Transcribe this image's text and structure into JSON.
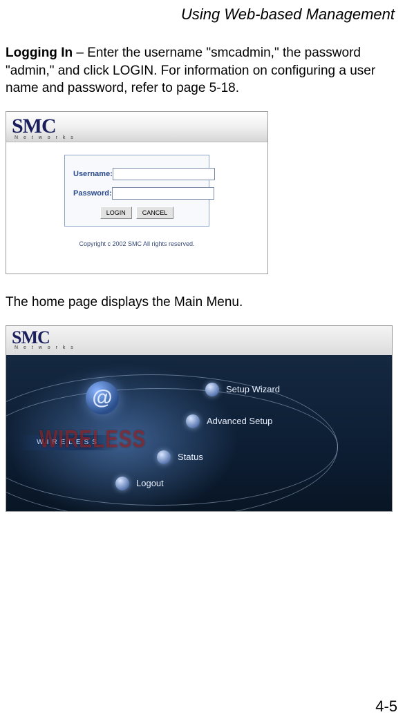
{
  "header": {
    "title": "Using Web-based Management"
  },
  "text": {
    "intro_bold": "Logging In",
    "intro_rest": " – Enter the username \"smcadmin,\" the password \"admin,\" and click LOGIN. For information on configuring a user name and password, refer to page 5-18.",
    "after_login": "The home page displays the Main Menu."
  },
  "login": {
    "logo_main": "SMC",
    "logo_sub": "N e t w o r k s",
    "username_label": "Username:",
    "password_label": "Password:",
    "username_value": "",
    "password_value": "",
    "login_btn": "LOGIN",
    "cancel_btn": "CANCEL",
    "copyright": "Copyright c 2002 SMC All rights reserved."
  },
  "menu": {
    "logo_main": "SMC",
    "logo_sub": "N e t w o r k s",
    "at": "@",
    "strip": "WIRELESS",
    "big": "WIRELESS",
    "items": [
      {
        "label": "Setup Wizard"
      },
      {
        "label": "Advanced Setup"
      },
      {
        "label": "Status"
      },
      {
        "label": "Logout"
      }
    ]
  },
  "page_number": "4-5",
  "colors": {
    "text": "#000000",
    "page_bg": "#ffffff",
    "label_blue": "#2a4a8a",
    "panel_dark": "#142840"
  }
}
